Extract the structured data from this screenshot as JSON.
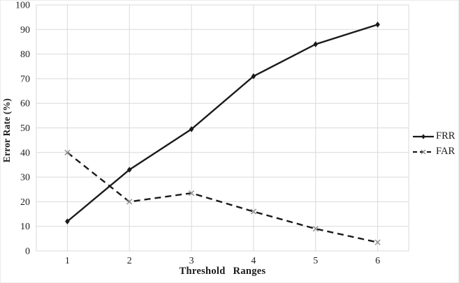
{
  "chart_data": {
    "type": "line",
    "title": "",
    "xlabel": "Threshold Ranges",
    "ylabel": "Error Rate (%)",
    "x": [
      1,
      2,
      3,
      4,
      5,
      6
    ],
    "ylim": [
      0,
      100
    ],
    "ytick_step": 10,
    "grid": true,
    "grid_color": "#d9d9d9",
    "legend_position": "right",
    "series": [
      {
        "name": "FRR",
        "values": [
          12,
          33,
          49.5,
          71,
          84,
          92
        ],
        "line_style": "solid",
        "marker": "diamond",
        "color": "#1a1a1a",
        "marker_color": "#1a1a1a"
      },
      {
        "name": "FAR",
        "values": [
          40,
          20,
          23.5,
          16,
          9,
          3.5
        ],
        "line_style": "dashed",
        "marker": "x",
        "color": "#1a1a1a",
        "marker_color": "#8c8c8c"
      }
    ]
  }
}
